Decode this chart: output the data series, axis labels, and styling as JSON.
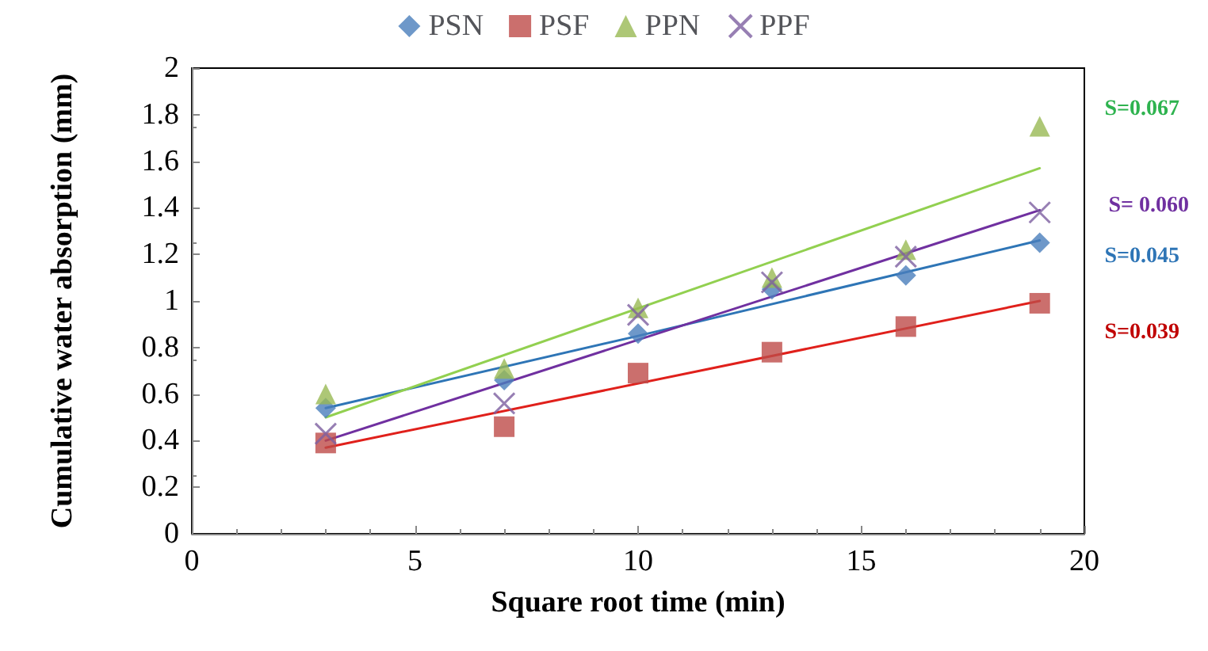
{
  "chart_data": {
    "type": "scatter",
    "xlabel": "Square root time (min)",
    "ylabel": "Cumulative water absorption (mm)",
    "x": [
      3,
      7,
      10,
      13,
      16,
      19
    ],
    "series": [
      {
        "name": "PSN",
        "color": "#4a7ebb",
        "marker": "diamond",
        "values": [
          0.54,
          0.66,
          0.86,
          1.05,
          1.11,
          1.25
        ]
      },
      {
        "name": "PSF",
        "color": "#be4b48",
        "marker": "square",
        "values": [
          0.39,
          0.46,
          0.69,
          0.78,
          0.89,
          0.99
        ]
      },
      {
        "name": "PPN",
        "color": "#98b954",
        "marker": "triangle",
        "values": [
          0.6,
          0.71,
          0.97,
          1.1,
          1.22,
          1.75
        ]
      },
      {
        "name": "PPF",
        "color": "#7d5fa0",
        "marker": "cross",
        "values": [
          0.43,
          0.56,
          0.94,
          1.08,
          1.19,
          1.38
        ]
      },
      {
        "type": "line",
        "color": "#2e75b6",
        "marker": "none",
        "x": [
          3,
          10,
          19
        ],
        "values": [
          0.54,
          0.85,
          1.26
        ]
      },
      {
        "type": "line",
        "color": "#e0201b",
        "marker": "none",
        "x": [
          3,
          19
        ],
        "values": [
          0.37,
          1.0
        ]
      },
      {
        "type": "line",
        "color": "#92d050",
        "marker": "none",
        "x": [
          3,
          19
        ],
        "values": [
          0.5,
          1.57
        ]
      },
      {
        "type": "line",
        "color": "#7030a0",
        "marker": "none",
        "x": [
          3,
          19
        ],
        "values": [
          0.4,
          1.39
        ]
      }
    ],
    "xlim": [
      0,
      20
    ],
    "xticks": [
      0,
      5,
      10,
      15,
      20
    ],
    "ylim": [
      0,
      2
    ],
    "yticks": [
      0,
      0.2,
      0.4,
      0.6,
      0.8,
      1,
      1.2,
      1.4,
      1.6,
      1.8,
      2
    ],
    "annotations": [
      "S=0.067",
      "S= 0.060",
      "S=0.045",
      "S=0.039"
    ],
    "legend": "top",
    "grid": false
  }
}
